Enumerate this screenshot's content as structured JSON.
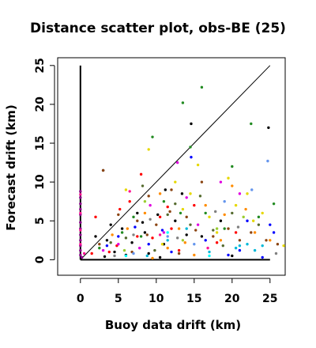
{
  "chart_data": {
    "type": "scatter",
    "title": "Distance scatter plot, obs-BE (25)",
    "xlabel": "Buoy data drift (km)",
    "ylabel": "Forecast drift (km)",
    "xlim": [
      -3,
      27
    ],
    "ylim": [
      -2,
      26
    ],
    "xticks": [
      0,
      5,
      10,
      15,
      20,
      25
    ],
    "yticks": [
      0,
      5,
      10,
      15,
      20,
      25
    ],
    "grid": false,
    "legend": "none",
    "reference_lines": [
      {
        "kind": "diagonal",
        "from": [
          0,
          0
        ],
        "to": [
          25,
          25
        ],
        "color": "#000000"
      },
      {
        "kind": "vertical-axis-line",
        "from": [
          0,
          0
        ],
        "to": [
          0,
          25
        ],
        "color": "#000000"
      },
      {
        "kind": "horizontal-axis-line",
        "from": [
          0,
          0
        ],
        "to": [
          25,
          0
        ],
        "color": "#000000"
      }
    ],
    "series": [
      {
        "color": "#000000",
        "points": [
          [
            3,
            11.5
          ],
          [
            14.6,
            17.5
          ],
          [
            24.8,
            17
          ],
          [
            11.2,
            9
          ],
          [
            13.4,
            8.5
          ],
          [
            10.2,
            5.8
          ],
          [
            8.5,
            3.5
          ],
          [
            6.8,
            2.2
          ],
          [
            12.5,
            5
          ],
          [
            5.5,
            4
          ],
          [
            7.5,
            6
          ],
          [
            16,
            3
          ],
          [
            9,
            0.8
          ],
          [
            4.5,
            1
          ],
          [
            3.2,
            0.4
          ],
          [
            14,
            3.2
          ],
          [
            20,
            0.5
          ],
          [
            2,
            3
          ],
          [
            6,
            0.6
          ],
          [
            11,
            2
          ],
          [
            18.5,
            5
          ],
          [
            4,
            4.5
          ],
          [
            10.5,
            0.3
          ],
          [
            8.2,
            4.8
          ],
          [
            3.5,
            2.5
          ]
        ]
      },
      {
        "color": "#FF0000",
        "points": [
          [
            8,
            11
          ],
          [
            10.5,
            5.5
          ],
          [
            15,
            7
          ],
          [
            2,
            5.5
          ],
          [
            7.5,
            3
          ],
          [
            12,
            4
          ],
          [
            3.8,
            1
          ],
          [
            9.5,
            2.8
          ],
          [
            18,
            2.2
          ],
          [
            5.2,
            6.5
          ],
          [
            13,
            1.2
          ],
          [
            1.5,
            0.8
          ],
          [
            6.5,
            7.5
          ],
          [
            11.5,
            6.8
          ],
          [
            20.5,
            3.5
          ],
          [
            4.8,
            1.8
          ]
        ]
      },
      {
        "color": "#228B22",
        "points": [
          [
            16,
            22.2
          ],
          [
            13.5,
            20.2
          ],
          [
            22.5,
            17.5
          ],
          [
            9.5,
            15.8
          ],
          [
            14.5,
            14.5
          ],
          [
            20,
            12
          ],
          [
            25.5,
            7.2
          ],
          [
            13.2,
            6
          ],
          [
            19,
            4
          ],
          [
            5.5,
            3.5
          ],
          [
            11,
            7.5
          ],
          [
            16.5,
            6
          ],
          [
            8,
            3
          ],
          [
            23.5,
            5.5
          ],
          [
            2.5,
            1.5
          ],
          [
            7,
            5.5
          ]
        ]
      },
      {
        "color": "#0000FF",
        "points": [
          [
            14.6,
            13.2
          ],
          [
            22,
            5
          ],
          [
            25,
            4.5
          ],
          [
            25.5,
            3.5
          ],
          [
            5,
            3
          ],
          [
            9,
            2
          ],
          [
            12,
            1
          ],
          [
            16.5,
            2.5
          ],
          [
            19.5,
            0.6
          ],
          [
            3.5,
            1.8
          ],
          [
            21,
            1.2
          ],
          [
            7.2,
            4.2
          ],
          [
            24,
            0.3
          ],
          [
            10.8,
            3.8
          ]
        ]
      },
      {
        "color": "#00B8D8",
        "points": [
          [
            21,
            1.8
          ],
          [
            22,
            2
          ],
          [
            24,
            1.8
          ],
          [
            20.5,
            1.5
          ],
          [
            14,
            4
          ],
          [
            8.8,
            0.5
          ],
          [
            11.5,
            2.5
          ],
          [
            17,
            1
          ],
          [
            23,
            1.2
          ]
        ]
      },
      {
        "color": "#E000E0",
        "points": [
          [
            12.8,
            12.5
          ],
          [
            14,
            8
          ],
          [
            18.5,
            10
          ],
          [
            21,
            8.5
          ],
          [
            9.2,
            7
          ],
          [
            5,
            2
          ],
          [
            15.5,
            4.5
          ],
          [
            11,
            3.5
          ],
          [
            7.8,
            1.5
          ],
          [
            3,
            1.2
          ]
        ]
      },
      {
        "color": "#E6D800",
        "points": [
          [
            9,
            14.2
          ],
          [
            15.5,
            12.2
          ],
          [
            19.5,
            10.5
          ],
          [
            12.5,
            10
          ],
          [
            22,
            8.5
          ],
          [
            14.5,
            8.5
          ],
          [
            17,
            5.5
          ],
          [
            20.5,
            7
          ],
          [
            13.5,
            6.5
          ],
          [
            6,
            9
          ],
          [
            24,
            6
          ],
          [
            26.8,
            1.8
          ],
          [
            10.8,
            2
          ],
          [
            18,
            3.5
          ],
          [
            22.8,
            5
          ]
        ]
      },
      {
        "color": "#FF8C00",
        "points": [
          [
            10.5,
            8.5
          ],
          [
            16.5,
            7
          ],
          [
            20,
            9.5
          ],
          [
            13,
            4
          ],
          [
            23,
            3.5
          ],
          [
            18.5,
            2.5
          ],
          [
            8.5,
            6
          ],
          [
            11.5,
            1.5
          ],
          [
            25,
            2.5
          ],
          [
            15,
            0.6
          ],
          [
            6.2,
            4
          ],
          [
            21.8,
            6.5
          ],
          [
            4.2,
            3.2
          ],
          [
            19,
            5.8
          ],
          [
            13.8,
            2.2
          ],
          [
            9.5,
            0.2
          ]
        ]
      },
      {
        "color": "#8B4513",
        "points": [
          [
            3,
            11.5
          ],
          [
            9,
            8.2
          ],
          [
            12,
            9
          ],
          [
            7.5,
            5
          ],
          [
            14,
            5.5
          ],
          [
            16,
            10
          ],
          [
            19.5,
            4
          ],
          [
            21,
            2.5
          ],
          [
            24.5,
            2.5
          ],
          [
            26,
            2
          ],
          [
            5,
            5.8
          ],
          [
            10,
            4.5
          ],
          [
            17.5,
            3
          ],
          [
            2.5,
            2
          ],
          [
            6.8,
            1
          ],
          [
            11.8,
            6.2
          ],
          [
            15.2,
            3.8
          ],
          [
            22.5,
            3.5
          ],
          [
            8.8,
            3.2
          ],
          [
            13,
            0.8
          ]
        ]
      },
      {
        "color": "#556B2F",
        "points": [
          [
            8.2,
            9.5
          ],
          [
            11.5,
            5.8
          ],
          [
            14.5,
            4.5
          ],
          [
            17.5,
            3.8
          ],
          [
            20,
            6
          ],
          [
            6,
            2.8
          ],
          [
            23.5,
            4.5
          ],
          [
            9.8,
            1.2
          ],
          [
            12.5,
            7.2
          ],
          [
            4,
            2.2
          ],
          [
            18.8,
            1.8
          ],
          [
            15.8,
            8.2
          ]
        ]
      },
      {
        "color": "#6495ED",
        "points": [
          [
            24.7,
            12.7
          ],
          [
            22.6,
            9
          ],
          [
            15,
            2
          ],
          [
            11.5,
            3
          ],
          [
            7,
            0.8
          ],
          [
            19,
            7.5
          ]
        ]
      },
      {
        "color": "#808080",
        "points": [
          [
            7,
            3.2
          ],
          [
            12.8,
            2.8
          ],
          [
            17.8,
            6.2
          ],
          [
            4.5,
            0.5
          ],
          [
            20.8,
            4.2
          ],
          [
            9.2,
            5.2
          ],
          [
            25.8,
            0.8
          ]
        ]
      },
      {
        "color": "#8B008B",
        "points": [
          [
            0,
            8.8
          ],
          [
            0,
            8
          ],
          [
            0,
            7.2
          ],
          [
            0,
            6.5
          ],
          [
            0,
            5.8
          ],
          [
            0,
            4.8
          ],
          [
            0,
            4
          ],
          [
            0,
            3.2
          ],
          [
            0,
            2.5
          ],
          [
            0,
            1.8
          ],
          [
            0,
            1.2
          ],
          [
            0,
            0.6
          ],
          [
            0.2,
            0.3
          ]
        ]
      },
      {
        "color": "#FF1493",
        "points": [
          [
            0,
            8.4
          ],
          [
            0,
            6
          ],
          [
            0,
            3.8
          ],
          [
            0,
            2
          ],
          [
            0.5,
            0.8
          ],
          [
            6.5,
            8.8
          ],
          [
            10.5,
            3.2
          ],
          [
            16.8,
            1.5
          ]
        ]
      },
      {
        "color": "#00FFFF",
        "points": [
          [
            11.5,
            3.5
          ],
          [
            6,
            0.5
          ],
          [
            17,
            0.5
          ]
        ]
      },
      {
        "color": "#9ACD32",
        "points": [
          [
            13.5,
            2.5
          ],
          [
            18,
            4
          ],
          [
            8.5,
            7.5
          ],
          [
            21.5,
            5.5
          ],
          [
            5.8,
            1.2
          ]
        ]
      }
    ]
  }
}
